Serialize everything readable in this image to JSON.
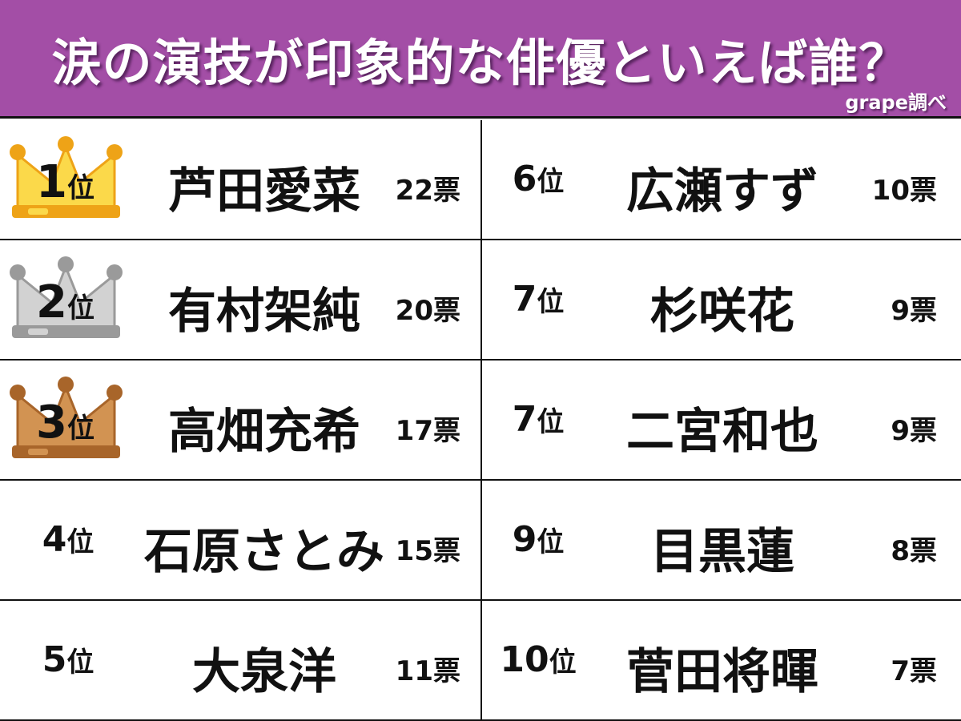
{
  "header": {
    "title": "涙の演技が印象的な俳優といえば誰？",
    "source": "grape調べ"
  },
  "colors": {
    "header_bg": "#a34ea6",
    "gold": "#f5c22c",
    "silver": "#bdbdbd",
    "bronze": "#c98440"
  },
  "ranking": [
    {
      "rank": "1",
      "suffix": "位",
      "name": "芦田愛菜",
      "votes": "22票",
      "crown": "gold"
    },
    {
      "rank": "2",
      "suffix": "位",
      "name": "有村架純",
      "votes": "20票",
      "crown": "silver"
    },
    {
      "rank": "3",
      "suffix": "位",
      "name": "高畑充希",
      "votes": "17票",
      "crown": "bronze"
    },
    {
      "rank": "4",
      "suffix": "位",
      "name": "石原さとみ",
      "votes": "15票"
    },
    {
      "rank": "5",
      "suffix": "位",
      "name": "大泉洋",
      "votes": "11票"
    },
    {
      "rank": "6",
      "suffix": "位",
      "name": "広瀬すず",
      "votes": "10票"
    },
    {
      "rank": "7",
      "suffix": "位",
      "name": "杉咲花",
      "votes": "9票"
    },
    {
      "rank": "7",
      "suffix": "位",
      "name": "二宮和也",
      "votes": "9票"
    },
    {
      "rank": "9",
      "suffix": "位",
      "name": "目黒蓮",
      "votes": "8票"
    },
    {
      "rank": "10",
      "suffix": "位",
      "name": "菅田将暉",
      "votes": "7票"
    }
  ]
}
